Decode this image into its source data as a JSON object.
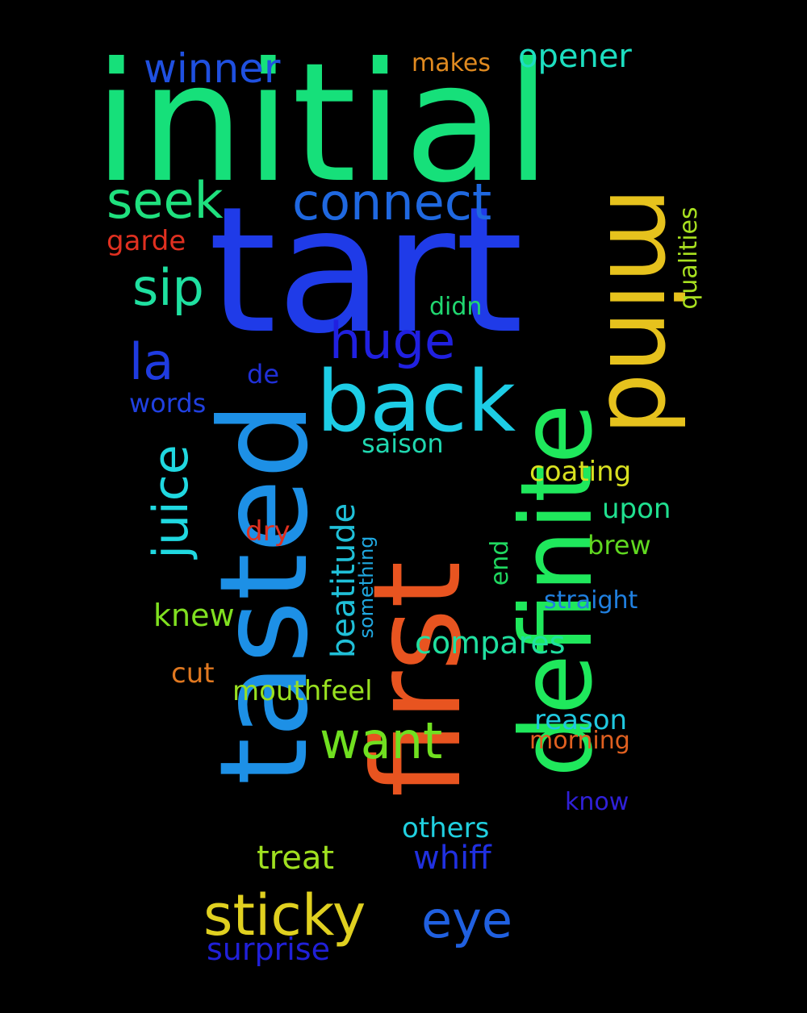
{
  "background": "#000000",
  "words": [
    {
      "text": "initial",
      "color": "#16E07A",
      "rotated": false
    },
    {
      "text": "tart",
      "color": "#1F3BE8",
      "rotated": false
    },
    {
      "text": "definite",
      "color": "#1FE85C",
      "rotated": true
    },
    {
      "text": "first",
      "color": "#E85420",
      "rotated": true
    },
    {
      "text": "tasted",
      "color": "#1D90E6",
      "rotated": true
    },
    {
      "text": "mind",
      "color": "#E6C21D",
      "rotated": true
    },
    {
      "text": "back",
      "color": "#1DCDE6",
      "rotated": false
    },
    {
      "text": "winner",
      "color": "#1F50E0",
      "rotated": false
    },
    {
      "text": "opener",
      "color": "#1DDEC0",
      "rotated": false
    },
    {
      "text": "makes",
      "color": "#E08A20",
      "rotated": false
    },
    {
      "text": "seek",
      "color": "#1FE07E",
      "rotated": false
    },
    {
      "text": "connect",
      "color": "#1F68E0",
      "rotated": false
    },
    {
      "text": "garde",
      "color": "#E03020",
      "rotated": false
    },
    {
      "text": "qualities",
      "color": "#A8E020",
      "rotated": true
    },
    {
      "text": "sip",
      "color": "#1FE0A0",
      "rotated": false
    },
    {
      "text": "didn",
      "color": "#20D870",
      "rotated": false
    },
    {
      "text": "huge",
      "color": "#2020E0",
      "rotated": false
    },
    {
      "text": "la",
      "color": "#1F3BE0",
      "rotated": false
    },
    {
      "text": "de",
      "color": "#2030D8",
      "rotated": false
    },
    {
      "text": "words",
      "color": "#2040E0",
      "rotated": false
    },
    {
      "text": "saison",
      "color": "#20D8B0",
      "rotated": false
    },
    {
      "text": "juice",
      "color": "#20D8E0",
      "rotated": true
    },
    {
      "text": "coating",
      "color": "#D8E020",
      "rotated": false
    },
    {
      "text": "upon",
      "color": "#20E090",
      "rotated": false
    },
    {
      "text": "beatitude",
      "color": "#20C0D8",
      "rotated": true
    },
    {
      "text": "dry",
      "color": "#E03020",
      "rotated": false
    },
    {
      "text": "something",
      "color": "#20A8E0",
      "rotated": true
    },
    {
      "text": "end",
      "color": "#20D860",
      "rotated": true
    },
    {
      "text": "brew",
      "color": "#60D820",
      "rotated": false
    },
    {
      "text": "straight",
      "color": "#2080E0",
      "rotated": false
    },
    {
      "text": "knew",
      "color": "#80E020",
      "rotated": false
    },
    {
      "text": "compares",
      "color": "#20E0A0",
      "rotated": false
    },
    {
      "text": "cut",
      "color": "#E07820",
      "rotated": false
    },
    {
      "text": "mouthfeel",
      "color": "#98E020",
      "rotated": false
    },
    {
      "text": "reason",
      "color": "#20C8E0",
      "rotated": false
    },
    {
      "text": "morning",
      "color": "#E06020",
      "rotated": false
    },
    {
      "text": "want",
      "color": "#70E020",
      "rotated": false
    },
    {
      "text": "know",
      "color": "#3020D8",
      "rotated": false
    },
    {
      "text": "others",
      "color": "#20D0E0",
      "rotated": false
    },
    {
      "text": "treat",
      "color": "#A0E020",
      "rotated": false
    },
    {
      "text": "whiff",
      "color": "#2030E0",
      "rotated": false
    },
    {
      "text": "sticky",
      "color": "#E0D020",
      "rotated": false
    },
    {
      "text": "eye",
      "color": "#2060E0",
      "rotated": false
    },
    {
      "text": "surprise",
      "color": "#2020D8",
      "rotated": false
    }
  ]
}
